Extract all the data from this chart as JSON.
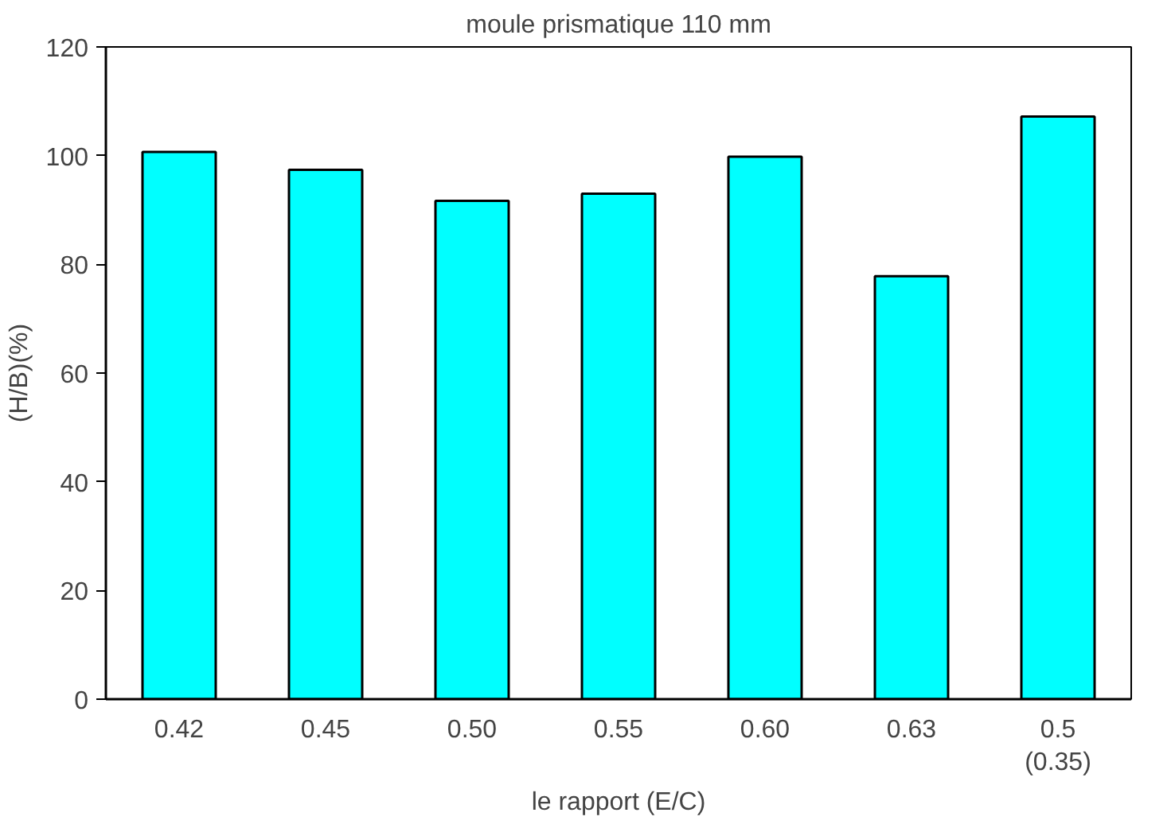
{
  "chart_data": {
    "type": "bar",
    "title": "moule prismatique 110 mm",
    "xlabel": "le rapport (E/C)",
    "ylabel": "(H/B)(%)",
    "categories": [
      "0.42",
      "0.45",
      "0.50",
      "0.55",
      "0.60",
      "0.63",
      "0.5\n(0.35)"
    ],
    "values": [
      100.7,
      97.4,
      91.7,
      93,
      99.8,
      77.8,
      107.2
    ],
    "color": "#00ffff",
    "ylim": [
      0,
      120
    ],
    "yticks": [
      0,
      20,
      40,
      60,
      80,
      100,
      120
    ],
    "grid": false
  }
}
